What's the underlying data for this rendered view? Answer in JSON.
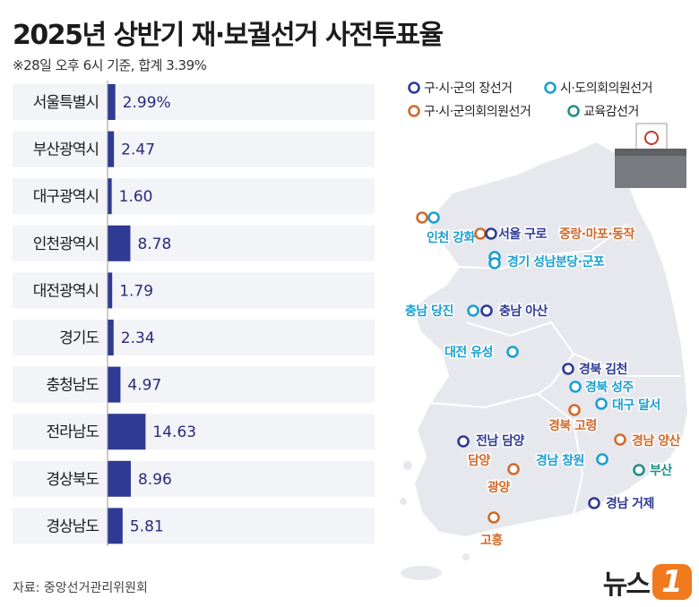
{
  "title": "2025년 상반기 재·보궐선거 사전투표율",
  "subtitle": "※28일 오후 6시 기준, 합계 3.39%",
  "source": "자료: 중앙선거관리위원회",
  "logo": {
    "text": "뉴스",
    "badge": "1"
  },
  "colors": {
    "bar": "#2f3a94",
    "row_bg": "#f2f4f8",
    "navy": "#2f3a94",
    "cyan": "#1a9fd0",
    "orange": "#d2692a",
    "teal": "#1f8f8a"
  },
  "chart_data": {
    "type": "bar",
    "orientation": "horizontal",
    "categories": [
      "서울특별시",
      "부산광역시",
      "대구광역시",
      "인천광역시",
      "대전광역시",
      "경기도",
      "충청남도",
      "전라남도",
      "경상북도",
      "경상남도"
    ],
    "values": [
      2.99,
      2.47,
      1.6,
      8.78,
      1.79,
      2.34,
      4.97,
      14.63,
      8.96,
      5.81
    ],
    "value_labels": [
      "2.99%",
      "2.47",
      "1.60",
      "8.78",
      "1.79",
      "2.34",
      "4.97",
      "14.63",
      "8.96",
      "5.81"
    ],
    "xlim": [
      0,
      100
    ]
  },
  "legend": [
    {
      "label": "구·시·군의 장선거",
      "color": "navy"
    },
    {
      "label": "시·도의회의원선거",
      "color": "cyan"
    },
    {
      "label": "구·시·군의회의원선거",
      "color": "orange"
    },
    {
      "label": "교육감선거",
      "color": "teal"
    }
  ],
  "map_labels": [
    {
      "text": "인천 강화",
      "color": "cyan"
    },
    {
      "text": "서울 구로",
      "color": "navy"
    },
    {
      "text": "중랑·마포·동작",
      "color": "orange"
    },
    {
      "text": "경기 성남분당·군포",
      "color": "cyan"
    },
    {
      "text": "충남 당진",
      "color": "cyan"
    },
    {
      "text": "충남 아산",
      "color": "navy"
    },
    {
      "text": "대전 유성",
      "color": "cyan"
    },
    {
      "text": "경북 김천",
      "color": "navy"
    },
    {
      "text": "경북 성주",
      "color": "cyan"
    },
    {
      "text": "대구 달서",
      "color": "cyan"
    },
    {
      "text": "경북 고령",
      "color": "orange"
    },
    {
      "text": "경남 양산",
      "color": "orange"
    },
    {
      "text": "전남 담양",
      "color": "navy"
    },
    {
      "text": "담양",
      "color": "orange"
    },
    {
      "text": "경남 창원",
      "color": "cyan"
    },
    {
      "text": "부산",
      "color": "teal"
    },
    {
      "text": "광양",
      "color": "orange"
    },
    {
      "text": "경남 거제",
      "color": "navy"
    },
    {
      "text": "고흥",
      "color": "orange"
    }
  ]
}
